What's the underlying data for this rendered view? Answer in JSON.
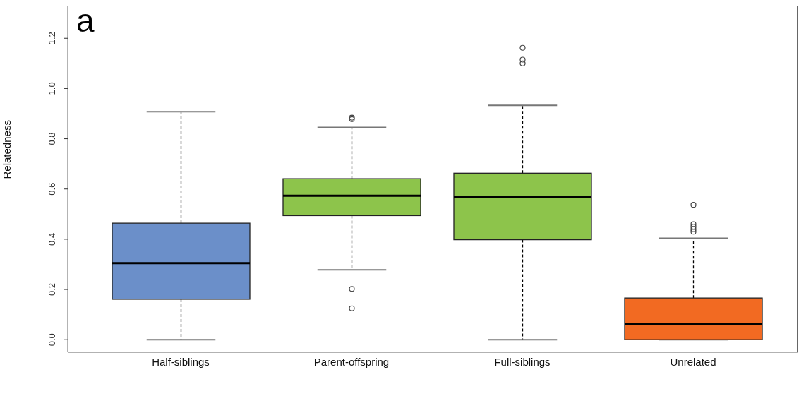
{
  "chart_data": {
    "type": "box",
    "title": "a",
    "ylabel": "Relatedness",
    "categories": [
      "Half-siblings",
      "Parent-offspring",
      "Full-siblings",
      "Unrelated"
    ],
    "colors": [
      "#6b8fc9",
      "#8dc44b",
      "#8dc44b",
      "#f26a22"
    ],
    "boxes": [
      {
        "low": 0,
        "q1": 0.161,
        "median": 0.305,
        "q3": 0.464,
        "high": 0.908
      },
      {
        "low": 0.278,
        "q1": 0.494,
        "median": 0.573,
        "q3": 0.641,
        "high": 0.845,
        "outliers": [
          0.884,
          0.878,
          0.202,
          0.125
        ]
      },
      {
        "low": 0,
        "q1": 0.398,
        "median": 0.567,
        "q3": 0.663,
        "high": 0.933,
        "outliers": [
          1.162,
          1.115,
          1.1
        ]
      },
      {
        "low": 0,
        "q1": 0,
        "median": 0.063,
        "q3": 0.166,
        "high": 0.404,
        "outliers": [
          0.537,
          0.46,
          0.45,
          0.44,
          0.43
        ]
      }
    ],
    "ylim": [
      -0.05,
      1.33
    ],
    "yticks": [
      {
        "value": 0,
        "label": "0.0"
      },
      0.2,
      0.4,
      0.6,
      0.8,
      {
        "value": 1,
        "label": "1.0"
      },
      1.2
    ],
    "grid": false,
    "legend": false
  }
}
